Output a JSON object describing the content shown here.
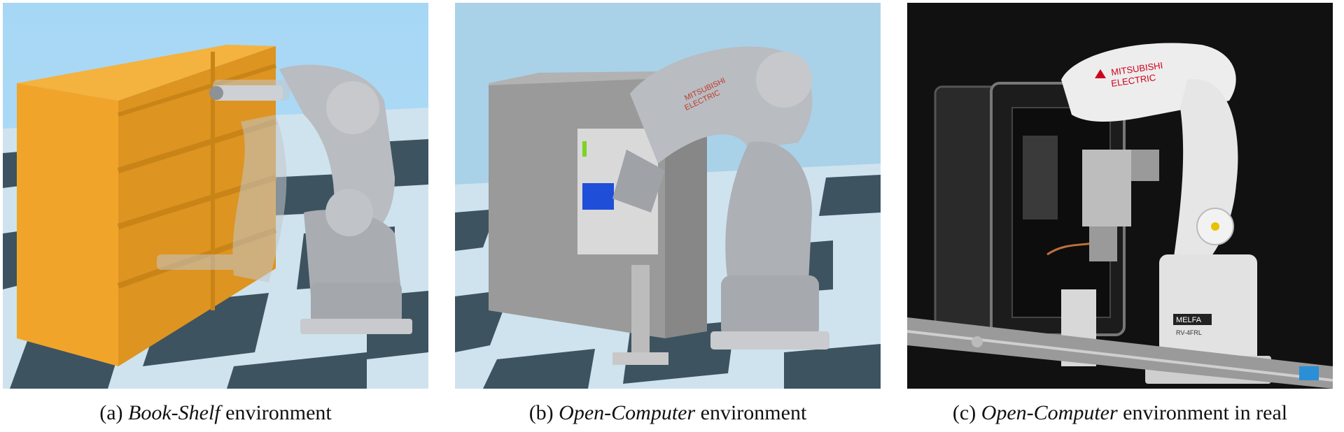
{
  "figures": [
    {
      "label": "(a)",
      "name": "Book-Shelf",
      "suffix": "environment"
    },
    {
      "label": "(b)",
      "name": "Open-Computer",
      "suffix": "environment"
    },
    {
      "label": "(c)",
      "name": "Open-Computer",
      "suffix": "environment in real"
    }
  ],
  "robot_branding": {
    "brand_line1": "MITSUBISHI",
    "brand_line2": "ELECTRIC",
    "base_plate": "MELFA",
    "model": "RV-4FRL"
  },
  "colors": {
    "sky": "#a9d6f2",
    "floor_light": "#cfe3ee",
    "floor_dark": "#3d5360",
    "shelf": "#f0a52a",
    "robot": "#b9bcc1",
    "cabinet": "#9a9a9a",
    "block": "#1f4ed8",
    "real_bg": "#111111"
  }
}
